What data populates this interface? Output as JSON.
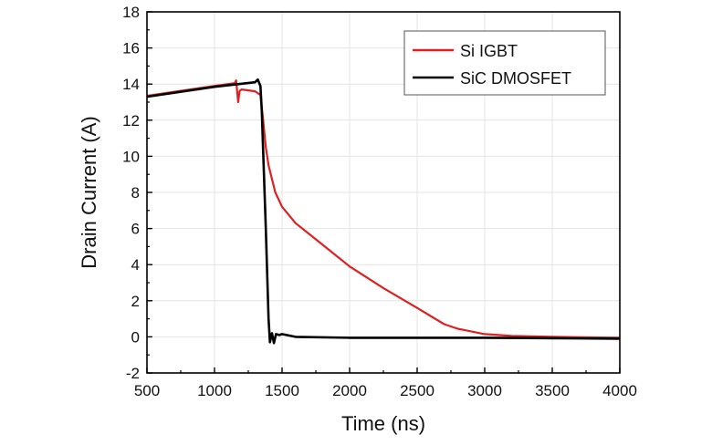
{
  "chart_data": {
    "type": "line",
    "xlabel": "Time (ns)",
    "ylabel": "Drain Current (A)",
    "xlim": [
      500,
      4000
    ],
    "ylim": [
      -2,
      18
    ],
    "xticks": [
      500,
      1000,
      1500,
      2000,
      2500,
      3000,
      3500,
      4000
    ],
    "yticks": [
      -2,
      0,
      2,
      4,
      6,
      8,
      10,
      12,
      14,
      16,
      18
    ],
    "grid": true,
    "legend_position": "top-right",
    "series": [
      {
        "name": "Si IGBT",
        "color": "#e02020",
        "x": [
          500,
          1000,
          1150,
          1160,
          1175,
          1185,
          1200,
          1250,
          1300,
          1340,
          1360,
          1380,
          1400,
          1450,
          1500,
          1600,
          1800,
          2000,
          2250,
          2500,
          2700,
          2800,
          3000,
          3200,
          3500,
          4000
        ],
        "y": [
          13.35,
          13.9,
          14.05,
          14.2,
          13.0,
          13.6,
          13.7,
          13.65,
          13.6,
          13.4,
          12.0,
          10.5,
          9.5,
          8.0,
          7.2,
          6.3,
          5.1,
          3.9,
          2.7,
          1.6,
          0.7,
          0.45,
          0.15,
          0.05,
          0.0,
          -0.05
        ]
      },
      {
        "name": "SiC DMOSFET",
        "color": "#000000",
        "x": [
          500,
          1000,
          1300,
          1320,
          1340,
          1350,
          1380,
          1400,
          1410,
          1425,
          1440,
          1455,
          1480,
          1500,
          1600,
          2000,
          3000,
          4000
        ],
        "y": [
          13.3,
          13.85,
          14.1,
          14.25,
          13.9,
          12.5,
          6.0,
          1.0,
          -0.3,
          0.2,
          -0.35,
          0.15,
          0.1,
          0.15,
          0.0,
          -0.05,
          -0.05,
          -0.1
        ]
      }
    ]
  }
}
